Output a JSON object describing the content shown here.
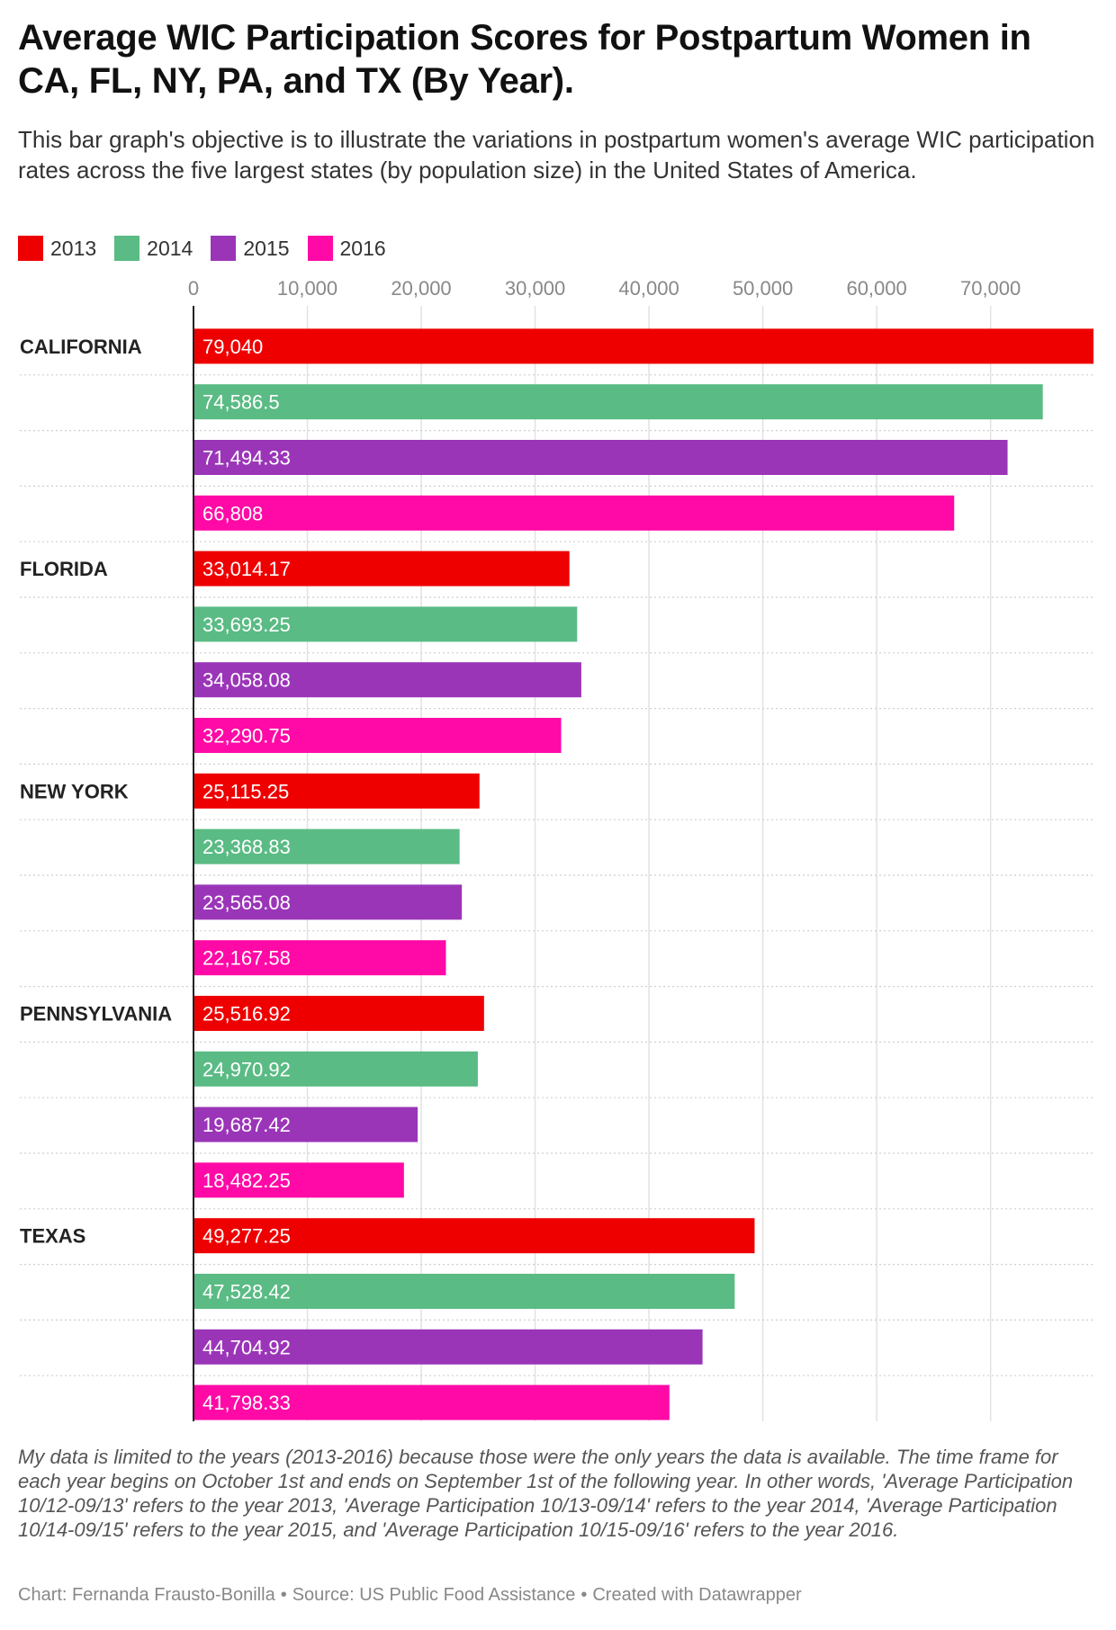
{
  "title": "Average WIC Participation Scores for Postpartum Women in CA, FL, NY, PA, and TX (By Year).",
  "subtitle": "This bar graph's objective is to illustrate the variations in postpartum women's average WIC participation rates across the five largest states (by population size) in the United States of America.",
  "legend": [
    {
      "label": "2013",
      "color": "#ee0000"
    },
    {
      "label": "2014",
      "color": "#5abb84"
    },
    {
      "label": "2015",
      "color": "#9b35b8"
    },
    {
      "label": "2016",
      "color": "#ff0aa6"
    }
  ],
  "chart_data": {
    "type": "bar",
    "orientation": "horizontal",
    "x_ticks": [
      "0",
      "10,000",
      "20,000",
      "30,000",
      "40,000",
      "50,000",
      "60,000",
      "70,000"
    ],
    "x_tick_values": [
      0,
      10000,
      20000,
      30000,
      40000,
      50000,
      60000,
      70000
    ],
    "xlim": [
      0,
      79040
    ],
    "grid": true,
    "legend_position": "top-left",
    "series_names": [
      "2013",
      "2014",
      "2015",
      "2016"
    ],
    "groups": [
      {
        "label": "CALIFORNIA",
        "values": [
          79040,
          74586.5,
          71494.33,
          66808
        ],
        "labels": [
          "79,040",
          "74,586.5",
          "71,494.33",
          "66,808"
        ]
      },
      {
        "label": "FLORIDA",
        "values": [
          33014.17,
          33693.25,
          34058.08,
          32290.75
        ],
        "labels": [
          "33,014.17",
          "33,693.25",
          "34,058.08",
          "32,290.75"
        ]
      },
      {
        "label": "NEW YORK",
        "values": [
          25115.25,
          23368.83,
          23565.08,
          22167.58
        ],
        "labels": [
          "25,115.25",
          "23,368.83",
          "23,565.08",
          "22,167.58"
        ]
      },
      {
        "label": "PENNSYLVANIA",
        "values": [
          25516.92,
          24970.92,
          19687.42,
          18482.25
        ],
        "labels": [
          "25,516.92",
          "24,970.92",
          "19,687.42",
          "18,482.25"
        ]
      },
      {
        "label": "TEXAS",
        "values": [
          49277.25,
          47528.42,
          44704.92,
          41798.33
        ],
        "labels": [
          "49,277.25",
          "47,528.42",
          "44,704.92",
          "41,798.33"
        ]
      }
    ]
  },
  "note": "My data is limited to the years (2013-2016) because those were the only years the data is available. The time frame for each year begins on October 1st and ends on September 1st of the following year. In other words, 'Average Participation 10/12-09/13' refers to the year 2013, 'Average Participation 10/13-09/14' refers to the year 2014, 'Average Participation 10/14-09/15' refers to the year 2015, and 'Average Participation 10/15-09/16' refers to the year 2016.",
  "credits": {
    "chart": "Chart: Fernanda Frausto-Bonilla",
    "source": "Source: US Public Food Assistance",
    "created": "Created with Datawrapper",
    "separator": "•"
  }
}
